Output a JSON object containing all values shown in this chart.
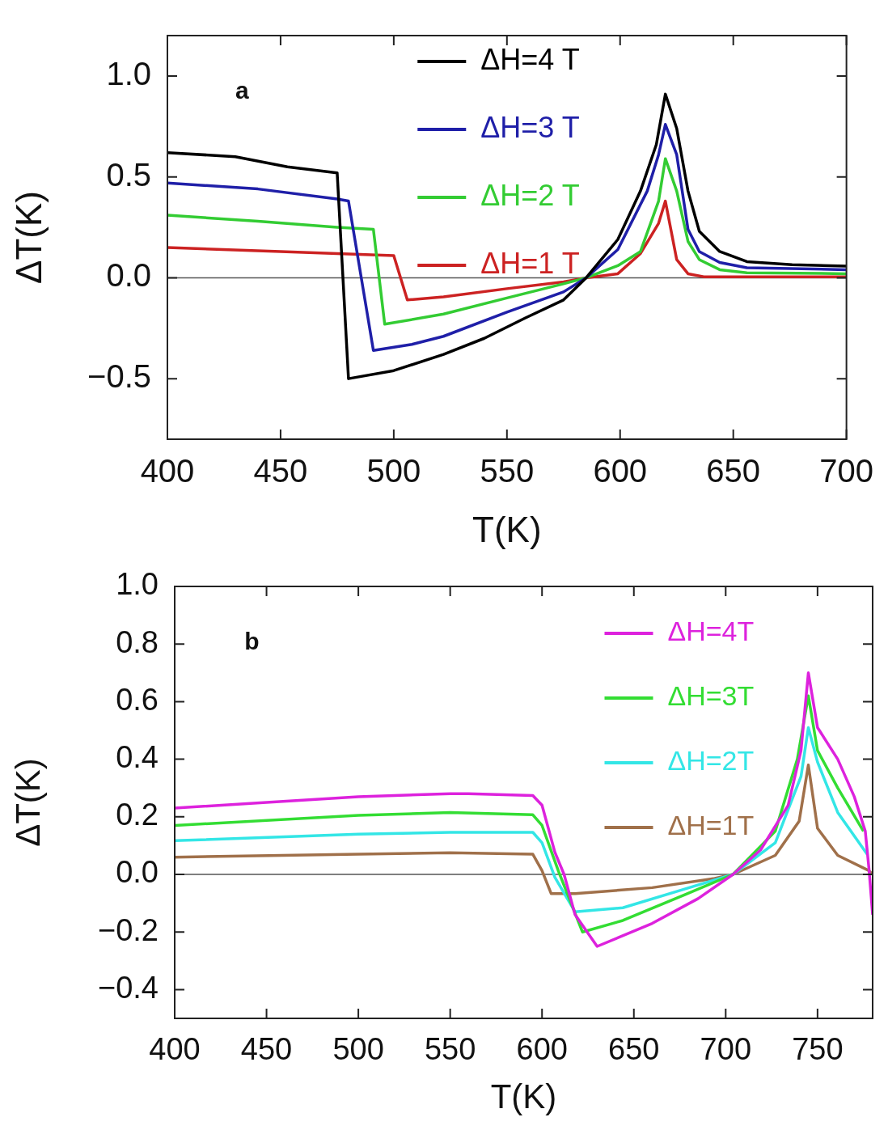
{
  "chart_data": [
    {
      "type": "line",
      "xlabel": "T(K)",
      "ylabel": "ΔT(K)",
      "annotations": [
        "a"
      ],
      "legend": "top",
      "xlim": [
        400,
        700
      ],
      "xticks": [
        400,
        450,
        500,
        550,
        600,
        650,
        700
      ],
      "ylim": [
        -0.8,
        1.2
      ],
      "yticks": [
        {
          "value": -0.5,
          "label": "−0.5"
        },
        {
          "value": 0,
          "label": "0.0"
        },
        {
          "value": 0.5,
          "label": "0.5"
        },
        {
          "value": 1,
          "label": "1.0"
        }
      ],
      "ref_lines": [
        {
          "axis": "y",
          "value": 0,
          "color": "#555555"
        }
      ],
      "series": [
        {
          "name": "ΔH=4 T",
          "color": "#000000",
          "x": [
            400,
            430,
            453,
            475,
            480,
            500,
            522,
            540,
            558,
            575,
            585,
            599,
            609,
            616,
            620,
            625,
            630,
            635,
            644,
            656,
            676,
            700
          ],
          "values": [
            0.62,
            0.6,
            0.55,
            0.52,
            -0.5,
            -0.46,
            -0.38,
            -0.3,
            -0.2,
            -0.11,
            0,
            0.19,
            0.43,
            0.66,
            0.91,
            0.74,
            0.43,
            0.23,
            0.13,
            0.08,
            0.065,
            0.058
          ]
        },
        {
          "name": "ΔH=3 T",
          "color": "#1f1fa8",
          "x": [
            400,
            440,
            475,
            480,
            491,
            508,
            522,
            550,
            575,
            585,
            599,
            612,
            617,
            620,
            625,
            630,
            635,
            644,
            656,
            700
          ],
          "values": [
            0.47,
            0.44,
            0.39,
            0.38,
            -0.36,
            -0.33,
            -0.29,
            -0.17,
            -0.07,
            0,
            0.14,
            0.43,
            0.61,
            0.76,
            0.61,
            0.24,
            0.13,
            0.076,
            0.05,
            0.04
          ]
        },
        {
          "name": "ΔH=2 T",
          "color": "#33cc33",
          "x": [
            400,
            440,
            475,
            491,
            496,
            522,
            550,
            575,
            585,
            599,
            609,
            617,
            620,
            625,
            630,
            635,
            644,
            656,
            700
          ],
          "values": [
            0.31,
            0.28,
            0.25,
            0.24,
            -0.23,
            -0.18,
            -0.1,
            -0.03,
            0,
            0.06,
            0.13,
            0.38,
            0.59,
            0.43,
            0.18,
            0.09,
            0.04,
            0.025,
            0.02
          ]
        },
        {
          "name": "ΔH=1 T",
          "color": "#cc2222",
          "x": [
            400,
            450,
            500,
            506,
            522,
            550,
            575,
            585,
            599,
            609,
            617,
            620,
            625,
            630,
            637,
            700
          ],
          "values": [
            0.15,
            0.13,
            0.11,
            -0.11,
            -0.095,
            -0.054,
            -0.02,
            0,
            0.02,
            0.12,
            0.27,
            0.38,
            0.09,
            0.02,
            0.005,
            0.005
          ]
        }
      ]
    },
    {
      "type": "line",
      "xlabel": "T(K)",
      "ylabel": "ΔT(K)",
      "annotations": [
        "b"
      ],
      "legend": "top right",
      "xlim": [
        400,
        780
      ],
      "xticks": [
        400,
        450,
        500,
        550,
        600,
        650,
        700,
        750
      ],
      "ylim": [
        -0.5,
        1.0
      ],
      "yticks": [
        {
          "value": -0.4,
          "label": "−0.4"
        },
        {
          "value": -0.2,
          "label": "−0.2"
        },
        {
          "value": 0,
          "label": "0.0"
        },
        {
          "value": 0.2,
          "label": "0.2"
        },
        {
          "value": 0.4,
          "label": "0.4"
        },
        {
          "value": 0.6,
          "label": "0.6"
        },
        {
          "value": 0.8,
          "label": "0.8"
        },
        {
          "value": 1,
          "label": "1.0"
        }
      ],
      "ref_lines": [
        {
          "axis": "y",
          "value": 0,
          "color": "#555555"
        }
      ],
      "series": [
        {
          "name": "ΔH=4T",
          "color": "#dd22dd",
          "x": [
            400,
            450,
            500,
            550,
            560,
            595,
            600,
            607,
            612,
            618,
            630,
            660,
            685,
            704,
            719,
            734,
            741,
            745,
            750,
            761,
            770,
            776,
            778,
            780
          ],
          "values": [
            0.23,
            0.25,
            0.27,
            0.28,
            0.28,
            0.274,
            0.24,
            0.077,
            0,
            -0.14,
            -0.25,
            -0.17,
            -0.084,
            0,
            0.085,
            0.24,
            0.43,
            0.7,
            0.51,
            0.4,
            0.27,
            0.15,
            0.02,
            -0.14
          ]
        },
        {
          "name": "ΔH=3T",
          "color": "#33dd33",
          "x": [
            400,
            500,
            550,
            595,
            600,
            609,
            622,
            644,
            678,
            704,
            727,
            739,
            745,
            750,
            761,
            775
          ],
          "values": [
            0.17,
            0.205,
            0.215,
            0.207,
            0.17,
            0.01,
            -0.2,
            -0.16,
            -0.07,
            0,
            0.15,
            0.4,
            0.62,
            0.43,
            0.3,
            0.15
          ]
        },
        {
          "name": "ΔH=2T",
          "color": "#33e6e6",
          "x": [
            400,
            500,
            550,
            595,
            600,
            607,
            618,
            644,
            678,
            704,
            727,
            741,
            745,
            750,
            761,
            777
          ],
          "values": [
            0.117,
            0.14,
            0.146,
            0.146,
            0.11,
            -0.01,
            -0.13,
            -0.116,
            -0.05,
            0,
            0.11,
            0.34,
            0.51,
            0.39,
            0.215,
            0.07
          ]
        },
        {
          "name": "ΔH=1T",
          "color": "#a0704a",
          "x": [
            400,
            500,
            550,
            595,
            600,
            605,
            618,
            660,
            694,
            704,
            727,
            740,
            745,
            750,
            761,
            778,
            780
          ],
          "values": [
            0.06,
            0.07,
            0.075,
            0.07,
            0.013,
            -0.067,
            -0.067,
            -0.046,
            -0.014,
            0,
            0.066,
            0.185,
            0.38,
            0.16,
            0.066,
            0.013,
            0
          ]
        }
      ]
    }
  ]
}
